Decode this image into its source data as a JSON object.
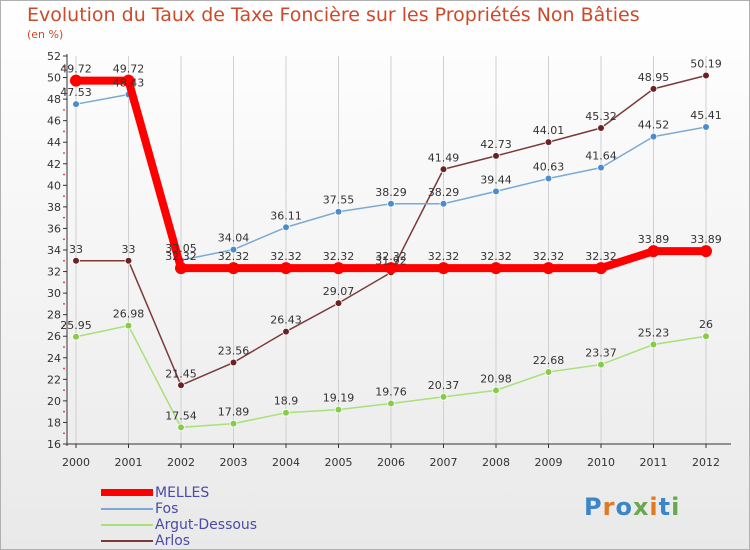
{
  "title": "Evolution du Taux de Taxe Foncière sur les Propriétés Non Bâties",
  "unit_label": "(en %)",
  "logo": {
    "text": "Proxiti",
    "colors": [
      "#3a86c8",
      "#e07a1f",
      "#3a86c8",
      "#6aa84f",
      "#e07a1f",
      "#3a86c8",
      "#6aa84f"
    ]
  },
  "chart_data": {
    "type": "line",
    "title": "Evolution du Taux de Taxe Foncière sur les Propriétés Non Bâties",
    "ylabel": "(en %)",
    "xlabel": "",
    "ylim": [
      16,
      52
    ],
    "yticks": [
      16,
      18,
      20,
      22,
      24,
      26,
      28,
      30,
      32,
      34,
      36,
      38,
      40,
      42,
      44,
      46,
      48,
      50,
      52
    ],
    "categories": [
      "2000",
      "2001",
      "2002",
      "2003",
      "2004",
      "2005",
      "2006",
      "2007",
      "2008",
      "2009",
      "2010",
      "2011",
      "2012"
    ],
    "legend_position": "bottom-left",
    "series": [
      {
        "name": "MELLES",
        "color": "#ff0000",
        "marker": "#ff0000",
        "values": [
          49.72,
          49.72,
          32.32,
          32.32,
          32.32,
          32.32,
          32.32,
          32.32,
          32.32,
          32.32,
          32.32,
          33.89,
          33.89
        ],
        "labels": [
          "49.72",
          "49.72",
          "32.32",
          "32.32",
          "32.32",
          "32.32",
          "32.32",
          "32.32",
          "32.32",
          "32.32",
          "32.32",
          "33.89",
          "33.89"
        ]
      },
      {
        "name": "Fos",
        "color": "#7aaad4",
        "marker": "#4a8ccc",
        "values": [
          47.53,
          48.43,
          33.05,
          34.04,
          36.11,
          37.55,
          38.29,
          38.29,
          39.44,
          40.63,
          41.64,
          44.52,
          45.41
        ],
        "labels": [
          "47.53",
          "48.43",
          "33.05",
          "34.04",
          "36.11",
          "37.55",
          "38.29",
          "38.29",
          "39.44",
          "40.63",
          "41.64",
          "44.52",
          "45.41"
        ]
      },
      {
        "name": "Argut-Dessous",
        "color": "#a8e07a",
        "marker": "#86cc44",
        "values": [
          25.95,
          26.98,
          17.54,
          17.89,
          18.9,
          19.19,
          19.76,
          20.37,
          20.98,
          22.68,
          23.37,
          25.23,
          26
        ],
        "labels": [
          "25.95",
          "26.98",
          "17.54",
          "17.89",
          "18.9",
          "19.19",
          "19.76",
          "20.37",
          "20.98",
          "22.68",
          "23.37",
          "25.23",
          "26"
        ]
      },
      {
        "name": "Arlos",
        "color": "#7a3a3a",
        "marker": "#6a2222",
        "values": [
          33,
          33,
          21.45,
          23.56,
          26.43,
          29.07,
          31.92,
          41.49,
          42.73,
          44.01,
          45.32,
          48.95,
          50.19
        ],
        "labels": [
          "33",
          "33",
          "21.45",
          "23.56",
          "26.43",
          "29.07",
          "31.92",
          "41.49",
          "42.73",
          "44.01",
          "45.32",
          "48.95",
          "50.19"
        ]
      }
    ]
  }
}
